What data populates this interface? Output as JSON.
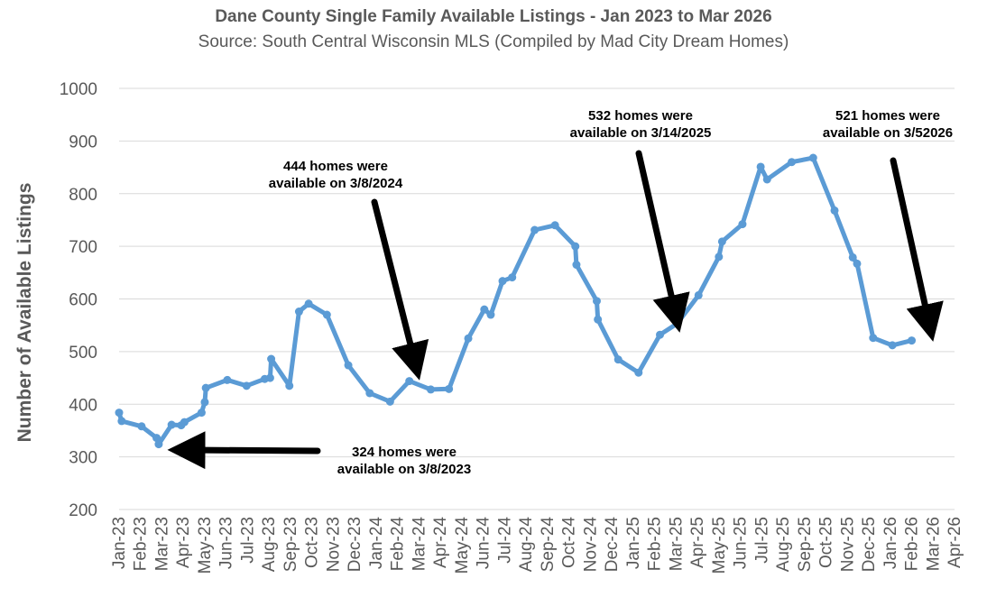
{
  "chart_data": {
    "type": "line",
    "title": "Dane County Single Family Available Listings - Jan 2023 to Mar 2026",
    "subtitle": "Source: South Central Wisconsin MLS (Compiled by Mad City Dream Homes)",
    "xlabel": "",
    "ylabel": "Number of Available Listings",
    "ylim": [
      200,
      1000
    ],
    "yticks": [
      200,
      300,
      400,
      500,
      600,
      700,
      800,
      900,
      1000
    ],
    "grid": true,
    "categories": [
      "Jan-23",
      "Feb-23",
      "Mar-23",
      "Apr-23",
      "May-23",
      "Jun-23",
      "Jul-23",
      "Aug-23",
      "Sep-23",
      "Oct-23",
      "Nov-23",
      "Dec-23",
      "Jan-24",
      "Feb-24",
      "Mar-24",
      "Apr-24",
      "May-24",
      "Jun-24",
      "Jul-24",
      "Aug-24",
      "Sep-24",
      "Oct-24",
      "Nov-24",
      "Dec-24",
      "Jan-25",
      "Feb-25",
      "Mar-25",
      "Apr-25",
      "May-25",
      "Jun-25",
      "Jul-25",
      "Aug-25",
      "Sep-25",
      "Oct-25",
      "Nov-25",
      "Dec-25",
      "Jan-26",
      "Feb-26",
      "Mar-26",
      "Apr-26"
    ],
    "series": [
      {
        "name": "Available Listings",
        "color": "#5b9bd5",
        "points": [
          {
            "x": 0.0,
            "y": 384
          },
          {
            "x": 0.12,
            "y": 368
          },
          {
            "x": 1.05,
            "y": 358
          },
          {
            "x": 1.75,
            "y": 336
          },
          {
            "x": 1.85,
            "y": 324
          },
          {
            "x": 2.45,
            "y": 361
          },
          {
            "x": 2.9,
            "y": 360
          },
          {
            "x": 3.05,
            "y": 366
          },
          {
            "x": 3.85,
            "y": 384
          },
          {
            "x": 4.0,
            "y": 404
          },
          {
            "x": 4.05,
            "y": 431
          },
          {
            "x": 5.05,
            "y": 446
          },
          {
            "x": 5.95,
            "y": 435
          },
          {
            "x": 6.8,
            "y": 448
          },
          {
            "x": 7.05,
            "y": 450
          },
          {
            "x": 7.1,
            "y": 486
          },
          {
            "x": 7.95,
            "y": 435
          },
          {
            "x": 8.4,
            "y": 576
          },
          {
            "x": 8.85,
            "y": 591
          },
          {
            "x": 9.7,
            "y": 570
          },
          {
            "x": 10.7,
            "y": 474
          },
          {
            "x": 11.7,
            "y": 421
          },
          {
            "x": 12.65,
            "y": 405
          },
          {
            "x": 13.55,
            "y": 444
          },
          {
            "x": 14.55,
            "y": 428
          },
          {
            "x": 15.4,
            "y": 429
          },
          {
            "x": 16.3,
            "y": 525
          },
          {
            "x": 17.05,
            "y": 580
          },
          {
            "x": 17.35,
            "y": 570
          },
          {
            "x": 17.9,
            "y": 634
          },
          {
            "x": 18.35,
            "y": 641
          },
          {
            "x": 19.4,
            "y": 731
          },
          {
            "x": 20.35,
            "y": 740
          },
          {
            "x": 21.3,
            "y": 700
          },
          {
            "x": 21.35,
            "y": 665
          },
          {
            "x": 22.3,
            "y": 596
          },
          {
            "x": 22.35,
            "y": 561
          },
          {
            "x": 23.3,
            "y": 485
          },
          {
            "x": 24.25,
            "y": 460
          },
          {
            "x": 25.25,
            "y": 532
          },
          {
            "x": 26.05,
            "y": 553
          },
          {
            "x": 27.05,
            "y": 607
          },
          {
            "x": 28.0,
            "y": 680
          },
          {
            "x": 28.15,
            "y": 709
          },
          {
            "x": 29.1,
            "y": 742
          },
          {
            "x": 29.95,
            "y": 851
          },
          {
            "x": 30.25,
            "y": 827
          },
          {
            "x": 31.4,
            "y": 860
          },
          {
            "x": 32.4,
            "y": 868
          },
          {
            "x": 33.4,
            "y": 768
          },
          {
            "x": 34.25,
            "y": 679
          },
          {
            "x": 34.45,
            "y": 667
          },
          {
            "x": 35.2,
            "y": 526
          },
          {
            "x": 36.1,
            "y": 512
          },
          {
            "x": 37.0,
            "y": 521
          }
        ]
      }
    ],
    "annotations": [
      {
        "lines": [
          "324 homes were",
          "available on 3/8/2023"
        ],
        "x": 1.85,
        "y": 324
      },
      {
        "lines": [
          "444 homes were",
          "available on 3/8/2024"
        ],
        "x": 13.55,
        "y": 444
      },
      {
        "lines": [
          "532 homes were",
          "available on 3/14/2025"
        ],
        "x": 25.25,
        "y": 532
      },
      {
        "lines": [
          "521 homes were",
          "available on 3/52026"
        ],
        "x": 37.0,
        "y": 521
      }
    ]
  }
}
